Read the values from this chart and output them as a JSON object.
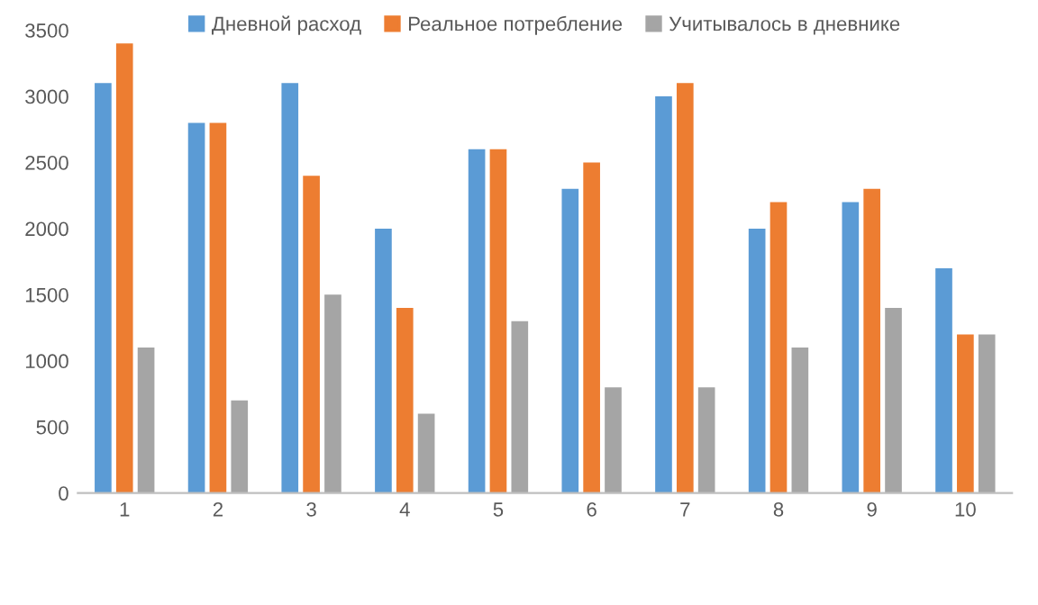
{
  "chart_data": {
    "type": "bar",
    "categories": [
      "1",
      "2",
      "3",
      "4",
      "5",
      "6",
      "7",
      "8",
      "9",
      "10"
    ],
    "series": [
      {
        "name": "Дневной расход",
        "color": "#5b9bd5",
        "values": [
          3100,
          2800,
          3100,
          2000,
          2600,
          2300,
          3000,
          2000,
          2200,
          1700
        ]
      },
      {
        "name": "Реальное потребление",
        "color": "#ed7d31",
        "values": [
          3400,
          2800,
          2400,
          1400,
          2600,
          2500,
          3100,
          2200,
          2300,
          1200
        ]
      },
      {
        "name": "Учитывалось в дневнике",
        "color": "#a5a5a5",
        "values": [
          1100,
          700,
          1500,
          600,
          1300,
          800,
          800,
          1100,
          1400,
          1200
        ]
      }
    ],
    "ylim": [
      0,
      3500
    ],
    "yticks": [
      0,
      500,
      1000,
      1500,
      2000,
      2500,
      3000,
      3500
    ],
    "grid": false,
    "legend": "top"
  }
}
